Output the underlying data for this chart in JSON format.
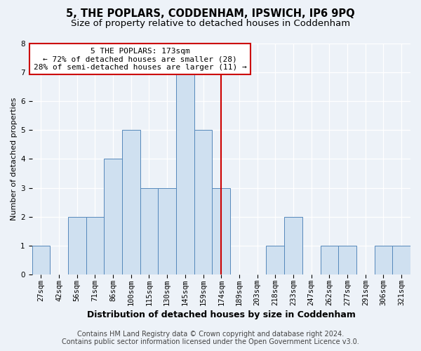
{
  "title1": "5, THE POPLARS, CODDENHAM, IPSWICH, IP6 9PQ",
  "title2": "Size of property relative to detached houses in Coddenham",
  "xlabel": "Distribution of detached houses by size in Coddenham",
  "ylabel": "Number of detached properties",
  "footer1": "Contains HM Land Registry data © Crown copyright and database right 2024.",
  "footer2": "Contains public sector information licensed under the Open Government Licence v3.0.",
  "categories": [
    "27sqm",
    "42sqm",
    "56sqm",
    "71sqm",
    "86sqm",
    "100sqm",
    "115sqm",
    "130sqm",
    "145sqm",
    "159sqm",
    "174sqm",
    "189sqm",
    "203sqm",
    "218sqm",
    "233sqm",
    "247sqm",
    "262sqm",
    "277sqm",
    "291sqm",
    "306sqm",
    "321sqm"
  ],
  "values": [
    1,
    0,
    2,
    2,
    4,
    5,
    3,
    3,
    7,
    5,
    3,
    0,
    0,
    1,
    2,
    0,
    1,
    1,
    0,
    1,
    1
  ],
  "bar_color": "#cfe0f0",
  "bar_edge_color": "#5588bb",
  "highlight_idx": 10,
  "highlight_line_color": "#cc0000",
  "annotation_text": "5 THE POPLARS: 173sqm\n← 72% of detached houses are smaller (28)\n28% of semi-detached houses are larger (11) →",
  "annotation_box_color": "#ffffff",
  "annotation_box_edge_color": "#cc0000",
  "ylim": [
    0,
    8
  ],
  "yticks": [
    0,
    1,
    2,
    3,
    4,
    5,
    6,
    7,
    8
  ],
  "background_color": "#edf2f8",
  "grid_color": "#ffffff",
  "title_fontsize": 10.5,
  "subtitle_fontsize": 9.5,
  "axis_label_fontsize": 9,
  "ylabel_fontsize": 8,
  "tick_fontsize": 7.5,
  "footer_fontsize": 7
}
